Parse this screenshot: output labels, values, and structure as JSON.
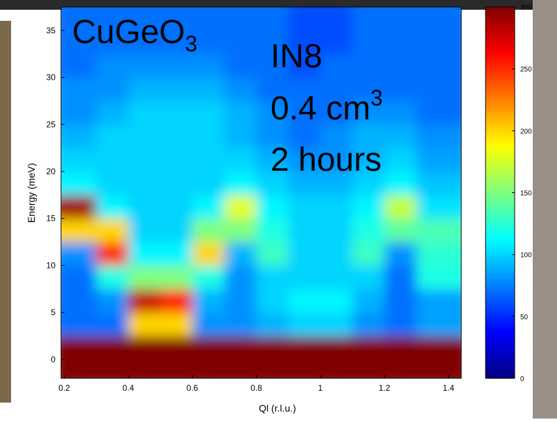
{
  "chart_data": {
    "type": "heatmap",
    "xlabel": "Ql (r.l.u.)",
    "ylabel": "Energy (meV)",
    "annotations": [
      "CuGeO3",
      "IN8",
      "0.4 cm3",
      "2 hours"
    ],
    "xlim": [
      0.19,
      1.44
    ],
    "ylim": [
      -2,
      37.5
    ],
    "xticks": [
      0.2,
      0.4,
      0.6,
      0.8,
      1,
      1.2,
      1.4
    ],
    "yticks": [
      0,
      5,
      10,
      15,
      20,
      25,
      30,
      35
    ],
    "x_bins": [
      0.19,
      0.3,
      0.4,
      0.5,
      0.6,
      0.7,
      0.8,
      0.9,
      1.0,
      1.1,
      1.2,
      1.3,
      1.44
    ],
    "y_bins": [
      -2,
      2.5,
      5,
      7.5,
      10,
      12.5,
      15,
      17.5,
      20,
      22.5,
      25,
      27.5,
      30,
      32.5,
      35,
      37.5
    ],
    "z": [
      [
        300,
        300,
        300,
        300,
        300,
        300,
        300,
        300,
        300,
        300,
        300,
        300
      ],
      [
        70,
        70,
        200,
        200,
        80,
        80,
        90,
        100,
        100,
        80,
        70,
        85
      ],
      [
        70,
        80,
        280,
        260,
        90,
        80,
        100,
        110,
        110,
        90,
        70,
        85
      ],
      [
        70,
        120,
        150,
        150,
        120,
        80,
        100,
        100,
        100,
        100,
        70,
        120
      ],
      [
        80,
        250,
        110,
        110,
        200,
        90,
        130,
        100,
        100,
        130,
        80,
        125
      ],
      [
        200,
        200,
        100,
        100,
        150,
        150,
        120,
        100,
        100,
        120,
        140,
        135
      ],
      [
        290,
        110,
        100,
        100,
        110,
        180,
        110,
        100,
        100,
        110,
        170,
        105
      ],
      [
        110,
        100,
        100,
        100,
        100,
        110,
        100,
        90,
        90,
        100,
        110,
        95
      ],
      [
        100,
        100,
        100,
        100,
        100,
        100,
        90,
        80,
        80,
        90,
        100,
        85
      ],
      [
        90,
        100,
        100,
        100,
        100,
        90,
        80,
        70,
        80,
        90,
        90,
        80
      ],
      [
        80,
        90,
        100,
        100,
        100,
        90,
        80,
        70,
        70,
        80,
        80,
        70
      ],
      [
        80,
        80,
        90,
        90,
        90,
        80,
        70,
        70,
        70,
        70,
        70,
        70
      ],
      [
        70,
        80,
        80,
        80,
        80,
        70,
        70,
        60,
        70,
        70,
        70,
        70
      ],
      [
        70,
        70,
        70,
        70,
        70,
        70,
        70,
        60,
        60,
        70,
        70,
        70
      ],
      [
        70,
        70,
        70,
        70,
        70,
        70,
        70,
        60,
        60,
        70,
        70,
        70
      ]
    ],
    "colormap": "jet",
    "clim": [
      0,
      300
    ],
    "cticks": [
      0,
      50,
      100,
      150,
      200,
      250,
      300
    ]
  }
}
